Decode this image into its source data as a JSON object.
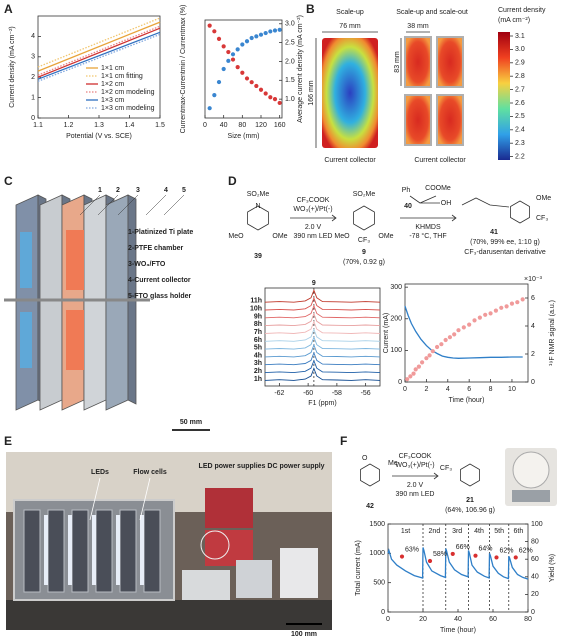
{
  "panel_labels": [
    "A",
    "B",
    "C",
    "D",
    "E",
    "F"
  ],
  "panel_b": {
    "scale_up": "Scale-up",
    "width_big": "76 mm",
    "height_big": "166 mm",
    "scale_out": "Scale-up and scale-out",
    "width_small": "38 mm",
    "height_small": "83 mm",
    "collector_left": "Current collector",
    "collector_right": "Current collector",
    "colorbar_title": [
      "Current density",
      "(mA cm⁻²)"
    ],
    "colorbar_ticks": [
      "3.1",
      "3.0",
      "2.9",
      "2.8",
      "2.7",
      "2.6",
      "2.5",
      "2.4",
      "2.3",
      "2.2"
    ]
  },
  "panel_c": {
    "numbers": [
      "1",
      "2",
      "3",
      "4",
      "5"
    ],
    "legend": [
      "1-Platinized Ti plate",
      "2-PTFE chamber",
      "3-WO₃/FTO",
      "4-Current collector",
      "5-FTO glass holder"
    ],
    "scale": "50 mm"
  },
  "scheme_d": {
    "so2me": "SO₂Me",
    "meo": "MeO",
    "ome": "OMe",
    "n": "N",
    "cmpd39": "39",
    "reagents": [
      "CF₃COOK",
      "WO₃(+)/Pt(-)",
      "2.0 V",
      "390 nm LED"
    ],
    "so2me_9": "SO₂Me",
    "meo_9": "MeO",
    "ome_9": "OMe",
    "cf3_9": "CF₃",
    "cmpd9": "9",
    "yield9": "(70%, 0.92 g)",
    "cmpd40": "40",
    "ph": "Ph",
    "coome": "COOMe",
    "oh": "OH",
    "base": "KHMDS",
    "cond": "-78 °C, THF",
    "cmpd41": "41",
    "ome_41": "OMe",
    "cf3_41": "CF₃",
    "yield41": "(70%, 99% ee, 1:10 g)",
    "desc41": "CF₃-darusentan derivative"
  },
  "panel_e": {
    "leds": "LEDs",
    "cells": "Flow cells",
    "led_power": "LED power supplies",
    "dc_power": "DC power supply",
    "scale": "100 mm"
  },
  "scheme_f": {
    "cmpd42": "42",
    "cmpd21": "21",
    "reagents": [
      "CF₃COOK",
      "WO₃(+)/Pt(-)",
      "2.0 V",
      "390 nm LED"
    ],
    "cf3": "CF₃",
    "me": "Me",
    "o": "O",
    "yield": "(64%, 106.96 g)"
  },
  "chart_data": [
    {
      "type": "line",
      "xlabel": "Potential (V vs. SCE)",
      "ylabel": "Current density (mA cm⁻²)",
      "x": [
        1.1,
        1.5
      ],
      "xlim": [
        1.1,
        1.5
      ],
      "xticks": [
        1.1,
        1.2,
        1.3,
        1.4,
        1.5
      ],
      "ylim": [
        0,
        5
      ],
      "yticks": [
        0,
        1,
        2,
        3,
        4
      ],
      "legend": "lower right",
      "series": [
        {
          "name": "1×1 cm",
          "color": "#e8a33a",
          "values": [
            2.3,
            4.7
          ]
        },
        {
          "name": "1×1 cm fitting",
          "color": "#f2c66e",
          "dash": true,
          "values": [
            2.5,
            4.9
          ]
        },
        {
          "name": "1×2 cm",
          "color": "#d03030",
          "values": [
            2.0,
            4.4
          ]
        },
        {
          "name": "1×2 cm modeling",
          "color": "#e88080",
          "dash": true,
          "values": [
            2.1,
            4.5
          ]
        },
        {
          "name": "1×3 cm",
          "color": "#3070c0",
          "values": [
            1.9,
            4.2
          ]
        },
        {
          "name": "1×3 cm modeling",
          "color": "#80a8e0",
          "dash": true,
          "values": [
            1.8,
            4.1
          ]
        }
      ]
    },
    {
      "type": "scatter",
      "xlabel": "Size (mm)",
      "ylabel": "Currentmax-Currentmin / Currentmax (%)",
      "y2label": "Average current density (mA cm⁻²)",
      "x": [
        10,
        20,
        30,
        40,
        50,
        60,
        70,
        80,
        90,
        100,
        110,
        120,
        130,
        140,
        150,
        160
      ],
      "xlim": [
        0,
        165
      ],
      "xticks": [
        0,
        40,
        80,
        120,
        160
      ],
      "ylim": [
        0,
        30
      ],
      "yticks": [],
      "y2lim": [
        0.5,
        3.1
      ],
      "y2ticks": [
        {
          "value": 1,
          "label": "1.0"
        },
        1.5,
        {
          "value": 2,
          "label": "2.0"
        },
        2.5,
        {
          "value": 3,
          "label": "3.0"
        }
      ],
      "series": [
        {
          "color": "#3a86d0",
          "values": [
            3,
            7,
            11,
            15,
            17.5,
            19.5,
            21,
            22.5,
            23.5,
            24.5,
            25,
            25.5,
            26,
            26.5,
            26.8,
            27
          ]
        },
        {
          "color": "#d83838",
          "axis": "y2",
          "values": [
            2.95,
            2.8,
            2.6,
            2.4,
            2.25,
            2.05,
            1.85,
            1.7,
            1.55,
            1.45,
            1.35,
            1.25,
            1.15,
            1.05,
            1.0,
            0.9
          ]
        }
      ]
    },
    {
      "type": "spectrum",
      "xlabel": "F1 (ppm)",
      "peak_label": "9",
      "peak_x": -59.6,
      "x": [
        -63,
        -62,
        -61,
        -60.2,
        -59.8,
        -59.6,
        -59.4,
        -59,
        -58,
        -57,
        -56,
        -55
      ],
      "xlim": [
        -63,
        -55
      ],
      "xticks": [
        -62,
        -60,
        -58,
        -56
      ],
      "ylim": [
        0,
        1
      ],
      "series": [
        {
          "name": "1h",
          "color": "#104a90",
          "values": [
            0.05,
            0.1,
            0.05,
            0.15,
            0.4,
            1,
            0.4,
            0.1,
            0.08,
            0.05,
            0.1,
            0.05
          ]
        },
        {
          "name": "2h",
          "color": "#2060a8",
          "values": [
            0.05,
            0.1,
            0.05,
            0.15,
            0.4,
            1,
            0.4,
            0.1,
            0.08,
            0.05,
            0.1,
            0.05
          ]
        },
        {
          "name": "3h",
          "color": "#3a7cc0",
          "values": [
            0.05,
            0.1,
            0.05,
            0.15,
            0.4,
            1,
            0.4,
            0.1,
            0.08,
            0.05,
            0.1,
            0.05
          ]
        },
        {
          "name": "4h",
          "color": "#5a9ad0",
          "values": [
            0.05,
            0.1,
            0.05,
            0.15,
            0.4,
            1,
            0.4,
            0.1,
            0.08,
            0.05,
            0.1,
            0.05
          ]
        },
        {
          "name": "5h",
          "color": "#80b8e0",
          "values": [
            0.05,
            0.1,
            0.05,
            0.15,
            0.4,
            1,
            0.4,
            0.1,
            0.08,
            0.05,
            0.1,
            0.05
          ]
        },
        {
          "name": "6h",
          "color": "#a8d0e8",
          "values": [
            0.05,
            0.1,
            0.05,
            0.15,
            0.4,
            1,
            0.4,
            0.1,
            0.08,
            0.05,
            0.1,
            0.05
          ]
        },
        {
          "name": "7h",
          "color": "#f0b8b8",
          "values": [
            0.05,
            0.1,
            0.05,
            0.15,
            0.4,
            1,
            0.4,
            0.1,
            0.08,
            0.05,
            0.1,
            0.05
          ]
        },
        {
          "name": "8h",
          "color": "#e8a0a0",
          "values": [
            0.05,
            0.1,
            0.05,
            0.15,
            0.4,
            1,
            0.4,
            0.1,
            0.08,
            0.05,
            0.1,
            0.05
          ]
        },
        {
          "name": "9h",
          "color": "#e06666",
          "values": [
            0.05,
            0.1,
            0.05,
            0.15,
            0.4,
            1,
            0.4,
            0.1,
            0.08,
            0.05,
            0.1,
            0.05
          ]
        },
        {
          "name": "10h",
          "color": "#d9534f",
          "values": [
            0.05,
            0.1,
            0.05,
            0.15,
            0.4,
            1,
            0.4,
            0.1,
            0.08,
            0.05,
            0.1,
            0.05
          ]
        },
        {
          "name": "11h",
          "color": "#c0392b",
          "values": [
            0.05,
            0.1,
            0.05,
            0.15,
            0.4,
            1,
            0.4,
            0.1,
            0.08,
            0.05,
            0.1,
            0.05
          ]
        }
      ]
    },
    {
      "type": "combo",
      "xlabel": "Time (hour)",
      "ylabel": "Current (mA)",
      "y2label": "¹⁹F NMR signal (a.u.)",
      "y2unit": "×10⁻³",
      "xlim": [
        0,
        11.5
      ],
      "xticks": [
        0,
        2,
        4,
        6,
        8,
        10
      ],
      "ylim": [
        0,
        310
      ],
      "yticks": [
        0,
        100,
        200,
        300
      ],
      "y2lim": [
        0,
        7
      ],
      "y2ticks": [
        0,
        2,
        4,
        6
      ],
      "series": [
        {
          "type": "line",
          "color": "#2f7fc8",
          "x": [
            0,
            0.3,
            0.6,
            1,
            1.5,
            2,
            2.5,
            3,
            3.5,
            4,
            4.5,
            5,
            6,
            7,
            8,
            9,
            10,
            11
          ],
          "values": [
            240,
            210,
            185,
            160,
            135,
            115,
            100,
            90,
            82,
            78,
            76,
            75,
            76,
            77,
            78,
            78,
            79,
            79
          ]
        },
        {
          "type": "points",
          "color": "#f09a9a",
          "axis": "y2",
          "x": [
            0.2,
            0.5,
            0.8,
            1,
            1.3,
            1.6,
            2,
            2.3,
            2.6,
            3,
            3.4,
            3.8,
            4.2,
            4.6,
            5,
            5.5,
            6,
            6.5,
            7,
            7.5,
            8,
            8.5,
            9,
            9.5,
            10,
            10.5,
            11
          ],
          "values": [
            0.2,
            0.4,
            0.6,
            0.9,
            1.1,
            1.4,
            1.7,
            1.9,
            2.2,
            2.5,
            2.7,
            3,
            3.2,
            3.4,
            3.7,
            3.9,
            4.1,
            4.4,
            4.6,
            4.8,
            4.9,
            5.1,
            5.3,
            5.4,
            5.6,
            5.7,
            5.9
          ]
        }
      ]
    },
    {
      "type": "combo",
      "xlabel": "Time (hour)",
      "ylabel": "Total current (mA)",
      "y2label": "Yield (%)",
      "xlim": [
        0,
        80
      ],
      "xticks": [
        0,
        20,
        40,
        60,
        80
      ],
      "ylim": [
        0,
        1500
      ],
      "yticks": [
        0,
        500,
        1000,
        1500
      ],
      "y2lim": [
        0,
        100
      ],
      "y2ticks": [
        0,
        20,
        40,
        60,
        80,
        100
      ],
      "batch_boundaries": [
        20,
        33,
        46,
        58,
        69
      ],
      "batch_labels": [
        "1st",
        "2nd",
        "3rd",
        "4th",
        "5th",
        "6th"
      ],
      "series": [
        {
          "type": "line",
          "color": "#2f7fc8",
          "x": [
            0,
            0.5,
            2,
            5,
            10,
            15,
            19.8,
            20,
            20.5,
            22,
            25,
            30,
            32.8,
            33,
            33.5,
            35,
            38,
            42,
            45.8,
            46,
            46.5,
            48,
            51,
            55,
            57.8,
            58,
            58.5,
            60,
            63,
            66,
            68.8,
            69,
            69.5,
            71,
            74,
            77,
            80
          ],
          "values": [
            1000,
            1050,
            900,
            800,
            700,
            620,
            580,
            1100,
            1050,
            850,
            700,
            620,
            590,
            1080,
            1040,
            850,
            720,
            640,
            600,
            1050,
            1000,
            800,
            680,
            610,
            580,
            1000,
            960,
            780,
            660,
            600,
            570,
            950,
            920,
            760,
            640,
            590,
            560
          ]
        },
        {
          "type": "points",
          "color": "#d83030",
          "axis": "y2",
          "x": [
            8,
            24,
            37,
            50,
            62,
            73
          ],
          "values": [
            63,
            58,
            66,
            64,
            62,
            62
          ],
          "value_labels": [
            "63%",
            "58%",
            "66%",
            "64%",
            "62%",
            "62%"
          ]
        }
      ]
    }
  ]
}
